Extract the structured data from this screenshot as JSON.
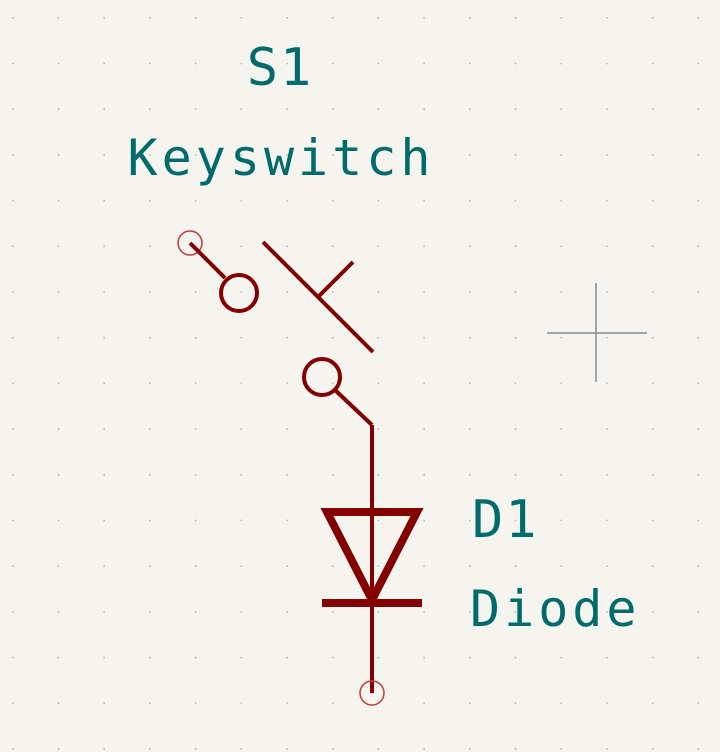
{
  "schematic": {
    "switch": {
      "reference": "S1",
      "value": "Keyswitch"
    },
    "diode": {
      "reference": "D1",
      "value": "Diode"
    }
  },
  "colors": {
    "background": "#f5f4ef",
    "grid_dot": "#b8b8b0",
    "symbol": "#840000",
    "pin_marker": "#c43a3a",
    "text": "#006b6b",
    "cursor": "#8a8a8a"
  },
  "icons": {
    "cursor": "crosshair-icon"
  }
}
